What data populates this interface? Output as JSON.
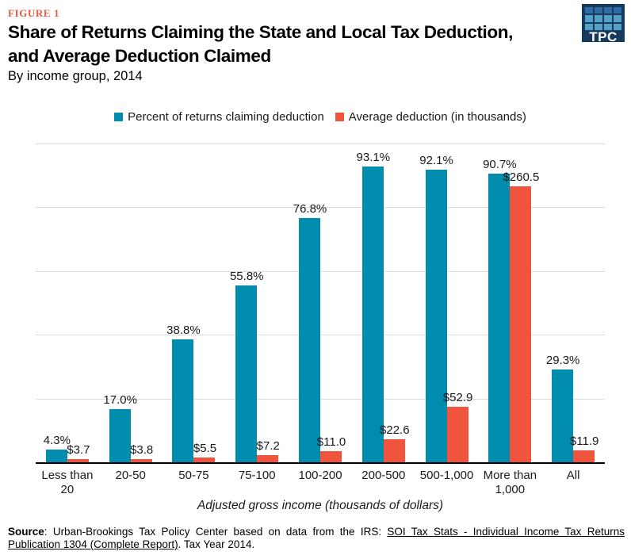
{
  "header": {
    "figure_label": "FIGURE 1",
    "title_lines": [
      "Share of Returns Claiming the State and Local Tax Deduction,",
      "and Average Deduction Claimed"
    ],
    "subtitle": "By income group, 2014"
  },
  "logo": {
    "text": "TPC",
    "background": "#17395C",
    "grid_rows": [
      [
        "#2C6DA4",
        "#2C6DA4",
        "#2C6DA4",
        "#2C6DA4"
      ],
      [
        "#54A1C8",
        "#54A1C8",
        "#54A1C8",
        "#54A1C8"
      ],
      [
        "#54A1C8",
        "#54A1C8",
        "#54A1C8",
        "#54A1C8"
      ]
    ]
  },
  "colors": {
    "figure_label": "#E75B43",
    "bar_percent": "#008CAC",
    "bar_average": "#F0543C",
    "gridline": "#DCDCDC",
    "axis": "#000000"
  },
  "chart_data": {
    "type": "bar",
    "categories": [
      "Less than 20",
      "20-50",
      "50-75",
      "75-100",
      "100-200",
      "200-500",
      "500-1,000",
      "More than 1,000",
      "All"
    ],
    "series": [
      {
        "name": "Percent of returns claiming deduction",
        "color": "#008CAC",
        "axis_max": 100,
        "values": [
          4.3,
          17.0,
          38.8,
          55.8,
          76.8,
          93.1,
          92.1,
          90.7,
          29.3
        ],
        "labels": [
          "4.3%",
          "17.0%",
          "38.8%",
          "55.8%",
          "76.8%",
          "93.1%",
          "92.1%",
          "90.7%",
          "29.3%"
        ]
      },
      {
        "name": "Average deduction (in thousands)",
        "color": "#F0543C",
        "axis_max": 300,
        "values": [
          3.7,
          3.8,
          5.5,
          7.2,
          11.0,
          22.6,
          52.9,
          260.5,
          11.9
        ],
        "labels": [
          "$3.7",
          "$3.8",
          "$5.5",
          "$7.2",
          "$11.0",
          "$22.6",
          "$52.9",
          "$260.5",
          "$11.9"
        ]
      }
    ],
    "xlabel": "Adjusted gross income (thousands of dollars)",
    "ylabel": "",
    "ylim_percent": [
      0,
      100
    ],
    "ylim_dollars": [
      0,
      300
    ],
    "grid": true,
    "gridline_step_percent": 20,
    "legend_position": "top-center"
  },
  "footer": {
    "source_bold": "Source",
    "source_text": ": Urban-Brookings Tax Policy Center based on data from the IRS: ",
    "source_link": "SOI Tax Stats - Individual Income Tax Returns Publication 1304 (Complete Report)",
    "source_suffix": ". Tax Year 2014."
  }
}
